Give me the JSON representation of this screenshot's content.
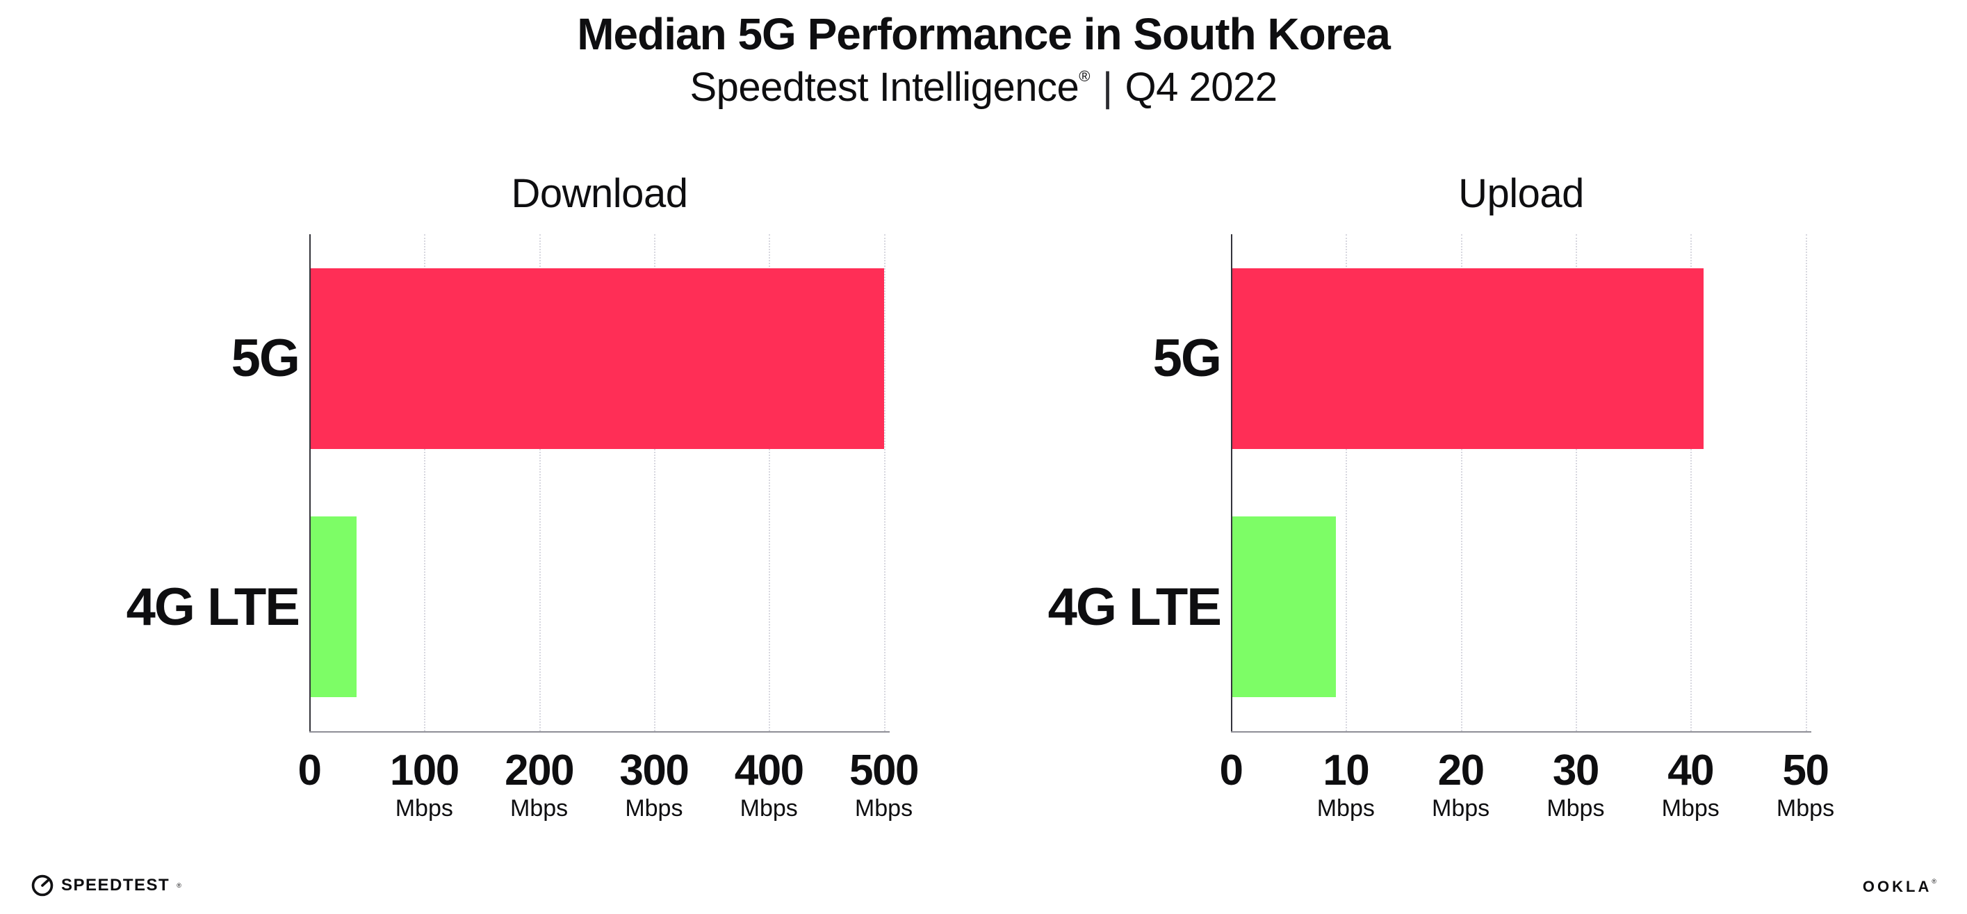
{
  "header": {
    "title": "Median 5G Performance in South Korea",
    "subtitle_brand": "Speedtest Intelligence",
    "subtitle_reg": "®",
    "subtitle_sep": "|",
    "subtitle_period": "Q4 2022"
  },
  "chart_data": [
    {
      "type": "bar",
      "orientation": "horizontal",
      "title": "Download",
      "categories": [
        "5G",
        "4G LTE"
      ],
      "values": [
        499,
        40
      ],
      "unit": "Mbps",
      "xlim": [
        0,
        500
      ],
      "xticks": [
        0,
        100,
        200,
        300,
        400,
        500
      ],
      "colors": [
        "#FF2E56",
        "#7DFD66"
      ],
      "grid": "dotted-vertical",
      "legend": "none"
    },
    {
      "type": "bar",
      "orientation": "horizontal",
      "title": "Upload",
      "categories": [
        "5G",
        "4G LTE"
      ],
      "values": [
        41,
        9
      ],
      "unit": "Mbps",
      "xlim": [
        0,
        50
      ],
      "xticks": [
        0,
        10,
        20,
        30,
        40,
        50
      ],
      "colors": [
        "#FF2E56",
        "#7DFD66"
      ],
      "grid": "dotted-vertical",
      "legend": "none"
    }
  ],
  "style": {
    "bar_color_5g": "#FF2E56",
    "bar_color_4g": "#7DFD66",
    "axis_y_color": "#33333a",
    "axis_x_color": "#8e8e96",
    "grid_color": "#d7d7df",
    "text_color": "#0e0e10"
  },
  "footer": {
    "speedtest_label": "SPEEDTEST",
    "speedtest_reg": "®",
    "ookla_label": "OOKLA",
    "ookla_reg": "®"
  }
}
